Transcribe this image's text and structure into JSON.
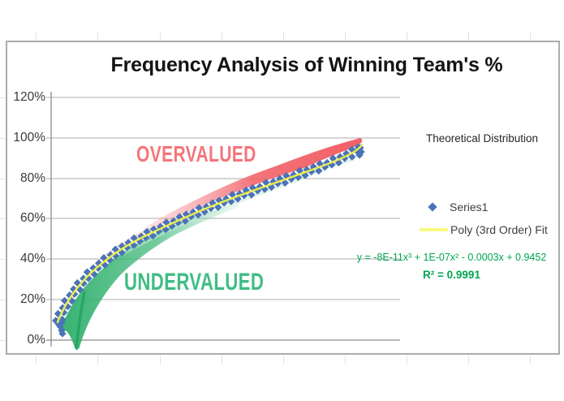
{
  "title": "Frequency Analysis of Winning Team's %",
  "axis": {
    "y_ticks": [
      "120%",
      "100%",
      "80%",
      "60%",
      "40%",
      "20%",
      "0%"
    ],
    "x_ticks": []
  },
  "regions": {
    "overvalued_label": "OVERVALUED",
    "undervalued_label": "UNDERVALUED"
  },
  "legend": {
    "header": "Theoretical Distribution",
    "series1_label": "Series1",
    "poly_label": "Poly (3rd Order) Fit"
  },
  "trendline": {
    "equation": "y = -8E-11x³ + 1E-07x² - 0.0003x + 0.9452",
    "r_squared": "R² = 0.9991"
  },
  "colors": {
    "series_blue": "#4a73b9",
    "fit_yellow": "#eded4a",
    "overvalued_red": "#f4757b",
    "overvalued_band": "#f2666c",
    "undervalued_green": "#3fbd84",
    "undervalued_band": "#2faf6d",
    "equation_green": "#00a550",
    "gridline_gray": "#ababab"
  },
  "chart_data": {
    "type": "scatter",
    "title": "Frequency Analysis of Winning Team's %",
    "xlabel": "",
    "ylabel": "",
    "x_axis_labels_visible": false,
    "ylim_pct": [
      0,
      120
    ],
    "y_tick_step_pct": 20,
    "grid": "horizontal",
    "legend_position": "right",
    "series": [
      {
        "name": "Series1",
        "marker": "diamond",
        "color": "#4a73b9",
        "points_x_fraction_y_pct": [
          [
            0.0,
            4
          ],
          [
            0.03,
            14
          ],
          [
            0.05,
            22
          ],
          [
            0.08,
            28
          ],
          [
            0.11,
            33
          ],
          [
            0.16,
            38
          ],
          [
            0.2,
            43
          ],
          [
            0.26,
            48
          ],
          [
            0.32,
            53
          ],
          [
            0.38,
            57
          ],
          [
            0.43,
            61
          ],
          [
            0.49,
            65
          ],
          [
            0.54,
            68
          ],
          [
            0.59,
            71
          ],
          [
            0.65,
            75
          ],
          [
            0.7,
            78
          ],
          [
            0.76,
            82
          ],
          [
            0.81,
            85
          ],
          [
            0.86,
            88
          ],
          [
            0.92,
            92
          ],
          [
            0.96,
            95
          ],
          [
            1.0,
            97
          ]
        ]
      }
    ],
    "trendline": {
      "name": "Poly (3rd Order) Fit",
      "color": "#eded4a",
      "equation": "y = -8E-11x³ + 1E-07x² - 0.0003x + 0.9452",
      "r_squared": 0.9991
    },
    "annotations": [
      {
        "text": "OVERVALUED",
        "color": "#f4757b",
        "position": "above curve, upper middle"
      },
      {
        "text": "UNDERVALUED",
        "color": "#3fbd84",
        "position": "below curve, lower left"
      },
      {
        "text": "Theoretical Distribution",
        "color": "#262626",
        "position": "right of plot"
      }
    ]
  }
}
